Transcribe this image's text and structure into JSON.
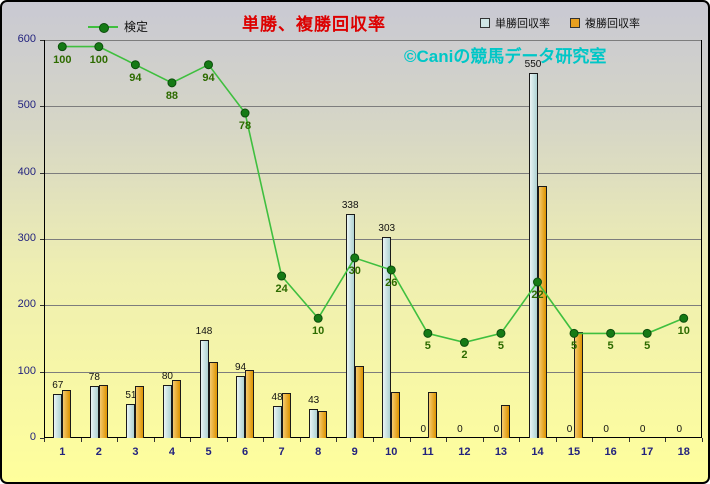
{
  "title": "単勝、複勝回収率",
  "watermark": "©Caniの競馬データ研究室",
  "legend": {
    "line": "検定",
    "bar1": "単勝回収率",
    "bar2": "複勝回収率"
  },
  "colors": {
    "title": "#dd0000",
    "watermark": "#00c7c7",
    "line": "#3fbf3f",
    "line_dot": "#157a15",
    "bar_tansho": "#cfe5e5",
    "bar_fukusho": "#e8a020",
    "axis_text": "#22227e",
    "line_label_text": "#2d6b00"
  },
  "chart_data": {
    "type": "bar",
    "subtype": "bar+line combo",
    "title": "単勝、複勝回収率",
    "xlabel": "",
    "ylabel": "",
    "categories": [
      "1",
      "2",
      "3",
      "4",
      "5",
      "6",
      "7",
      "8",
      "9",
      "10",
      "11",
      "12",
      "13",
      "14",
      "15",
      "16",
      "17",
      "18"
    ],
    "series": [
      {
        "name": "単勝回収率",
        "type": "bar",
        "color": "#cfe5e5",
        "values": [
          67,
          78,
          51,
          80,
          148,
          94,
          48,
          43,
          338,
          303,
          0,
          0,
          0,
          550,
          0,
          0,
          0,
          0
        ],
        "labels": [
          "67",
          "78",
          "51",
          "80",
          "148",
          "94",
          "48",
          "43",
          "338",
          "303",
          "0",
          "0",
          "0",
          "550",
          "0",
          "0",
          "0",
          "0"
        ]
      },
      {
        "name": "複勝回収率",
        "type": "bar",
        "color": "#e8a020",
        "values": [
          72,
          80,
          78,
          88,
          115,
          103,
          68,
          40,
          108,
          70,
          70,
          0,
          50,
          380,
          160,
          0,
          0,
          0
        ]
      },
      {
        "name": "検定",
        "type": "line",
        "color": "#3fbf3f",
        "values": [
          100,
          100,
          94,
          88,
          94,
          78,
          24,
          10,
          30,
          26,
          5,
          2,
          5,
          22,
          5,
          5,
          5,
          10
        ],
        "labels": [
          "100",
          "100",
          "94",
          "88",
          "94",
          "78",
          "24",
          "10",
          "30",
          "26",
          "5",
          "2",
          "5",
          "22",
          "5",
          "5",
          "5",
          "10"
        ],
        "plot_offset": 135,
        "plot_scale": 4.55
      }
    ],
    "ylim": [
      0,
      600
    ],
    "y_ticks": [
      0,
      100,
      200,
      300,
      400,
      500,
      600
    ],
    "grid": true,
    "legend_position": "top"
  }
}
